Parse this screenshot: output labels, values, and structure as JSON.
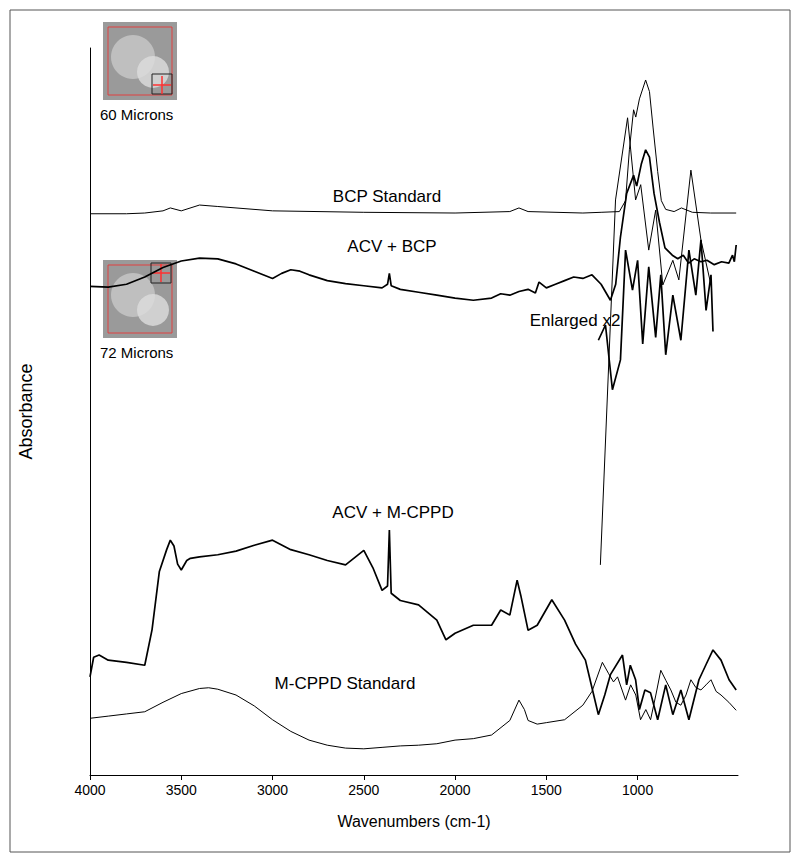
{
  "chart_data": {
    "type": "line",
    "x_label": "Wavenumbers (cm-1)",
    "y_label": "Absorbance",
    "xlim": [
      4000,
      450
    ],
    "xticks": [
      4000,
      3500,
      3000,
      2500,
      2000,
      1500,
      1000
    ],
    "ylim": [
      0,
      100
    ],
    "tick_labels": "x",
    "grid": false,
    "log": false,
    "annotations": [
      {
        "text": "Enlarged x2"
      }
    ],
    "insets": [
      {
        "caption": "60 Microns"
      },
      {
        "caption": "72 Microns"
      }
    ],
    "series": [
      {
        "name": "BCP Standard",
        "color": "#000000",
        "line_style": "thin",
        "x": [
          4000,
          3800,
          3700,
          3600,
          3560,
          3500,
          3400,
          3300,
          3000,
          2500,
          2000,
          1700,
          1650,
          1600,
          1300,
          1200,
          1100,
          1066,
          1045,
          1022,
          1010,
          990,
          956,
          935,
          915,
          890,
          870,
          846,
          800,
          760,
          700,
          600,
          460
        ],
        "values": [
          77.2,
          77.2,
          77.3,
          77.6,
          78.0,
          77.6,
          78.4,
          78.2,
          77.6,
          77.4,
          77.3,
          77.5,
          78.0,
          77.5,
          77.3,
          77.4,
          77.5,
          79,
          86,
          91.5,
          90.5,
          93,
          95.6,
          94,
          89,
          83,
          79,
          77.8,
          77.5,
          78,
          77.4,
          77.3,
          77.3
        ]
      },
      {
        "name": "ACV + BCP",
        "color": "#000000",
        "line_style": "thick",
        "x": [
          4000,
          3900,
          3800,
          3700,
          3600,
          3500,
          3400,
          3300,
          3200,
          3100,
          3000,
          2950,
          2900,
          2850,
          2800,
          2700,
          2600,
          2500,
          2400,
          2370,
          2360,
          2350,
          2300,
          2200,
          2100,
          2000,
          1900,
          1800,
          1750,
          1700,
          1650,
          1600,
          1560,
          1540,
          1500,
          1450,
          1400,
          1350,
          1300,
          1250,
          1200,
          1149,
          1120,
          1094,
          1060,
          1022,
          1005,
          980,
          956,
          935,
          910,
          880,
          850,
          810,
          780,
          750,
          720,
          690,
          653,
          620,
          580,
          540,
          500,
          480,
          470,
          460
        ],
        "values": [
          67.2,
          67.1,
          67.5,
          68.5,
          69.8,
          70.7,
          71.1,
          71.0,
          70.3,
          69.3,
          68.3,
          69.0,
          69.5,
          69.3,
          68.8,
          68.0,
          67.6,
          67.3,
          67.0,
          67.5,
          69.0,
          67.3,
          66.8,
          66.4,
          66.0,
          65.6,
          65.3,
          65.6,
          66.2,
          66.0,
          66.5,
          66.8,
          66.3,
          67.8,
          67.0,
          67.5,
          68.0,
          68.5,
          68.3,
          68.8,
          67.5,
          65.3,
          67.5,
          74,
          80,
          82.5,
          81,
          84,
          86,
          85,
          80,
          76,
          72.5,
          71.5,
          71,
          71.5,
          70.4,
          71,
          70.6,
          70.8,
          70.2,
          70.6,
          70.4,
          71.5,
          70.6,
          72.9
        ]
      },
      {
        "color": "#000000",
        "line_style": "thin",
        "x": [
          1204,
          1121,
          1055,
          1011,
          983,
          939,
          901,
          862,
          807,
          774,
          708,
          653,
          598
        ],
        "values": [
          28.9,
          79.1,
          90.4,
          79.1,
          81.2,
          72.2,
          77.7,
          67.4,
          70.8,
          68.1,
          83.2,
          73.6,
          67.4
        ]
      },
      {
        "color": "#000000",
        "line_style": "thick",
        "x": [
          1215,
          1176,
          1138,
          1094,
          1066,
          1028,
          1000,
          972,
          939,
          901,
          873,
          846,
          807,
          763,
          719,
          681,
          653,
          625,
          598,
          587
        ],
        "values": [
          59.8,
          61.9,
          53.0,
          57.1,
          72.2,
          66.7,
          70.8,
          59.3,
          69.9,
          60.2,
          68.8,
          57.8,
          66.0,
          59.8,
          72.2,
          66.0,
          73.6,
          63.9,
          68.8,
          61.0
        ]
      },
      {
        "name": "ACV + M-CPPD",
        "color": "#000000",
        "line_style": "thick",
        "x": [
          4000,
          3980,
          3950,
          3900,
          3800,
          3700,
          3660,
          3620,
          3580,
          3560,
          3540,
          3520,
          3500,
          3470,
          3450,
          3400,
          3300,
          3200,
          3100,
          3000,
          2900,
          2800,
          2700,
          2600,
          2500,
          2450,
          2400,
          2370,
          2360,
          2350,
          2300,
          2200,
          2100,
          2050,
          2000,
          1900,
          1800,
          1750,
          1700,
          1660,
          1640,
          1600,
          1550,
          1470,
          1400,
          1340,
          1286,
          1250,
          1215,
          1180,
          1149,
          1083,
          1060,
          1040,
          1011,
          990,
          960,
          929,
          890,
          846,
          807,
          763,
          719,
          664,
          625,
          587,
          543,
          499,
          460
        ],
        "values": [
          13.5,
          16.2,
          16.5,
          15.8,
          15.5,
          15.1,
          20,
          28,
          31,
          32.3,
          31.5,
          29,
          28.2,
          29.5,
          29.8,
          30,
          30.3,
          30.8,
          31.6,
          32.3,
          31,
          30.3,
          29.5,
          28.9,
          30.9,
          28.5,
          25.4,
          26,
          33.7,
          25,
          24,
          23.4,
          21.3,
          18.6,
          19.5,
          20.6,
          20.6,
          22.7,
          22,
          26.8,
          24.7,
          19.9,
          20.6,
          24.1,
          21.3,
          18,
          15.8,
          12,
          8.3,
          11,
          13.8,
          16.5,
          12.4,
          15.1,
          13.1,
          9,
          11.7,
          11.3,
          7.6,
          12.4,
          8.3,
          11.7,
          7.6,
          13.1,
          15.2,
          17.2,
          15.8,
          13.1,
          11.7
        ]
      },
      {
        "name": "M-CPPD Standard",
        "color": "#000000",
        "line_style": "thin",
        "x": [
          4000,
          3900,
          3800,
          3700,
          3600,
          3500,
          3400,
          3350,
          3300,
          3200,
          3100,
          3000,
          2900,
          2800,
          2700,
          2600,
          2500,
          2400,
          2300,
          2200,
          2100,
          2000,
          1900,
          1800,
          1700,
          1650,
          1620,
          1600,
          1550,
          1500,
          1400,
          1300,
          1250,
          1193,
          1160,
          1132,
          1110,
          1066,
          1038,
          1010,
          984,
          955,
          929,
          900,
          873,
          845,
          818,
          790,
          763,
          735,
          708,
          680,
          653,
          625,
          598,
          570,
          543,
          500,
          460
        ],
        "values": [
          7.8,
          8.1,
          8.4,
          8.7,
          10,
          11.2,
          11.9,
          12.0,
          11.8,
          11,
          9.5,
          7.6,
          6,
          4.8,
          4.1,
          3.7,
          3.6,
          3.8,
          4,
          4.1,
          4.3,
          4.8,
          5,
          5.5,
          7.5,
          10.3,
          9,
          7.5,
          7,
          7.2,
          7.6,
          9.6,
          11.5,
          15.5,
          14,
          12.8,
          13.5,
          10.3,
          12.4,
          11,
          7.6,
          9,
          7.6,
          11,
          14.4,
          13,
          11.7,
          10,
          9.6,
          11,
          13.1,
          12,
          11.7,
          12.4,
          13.1,
          11.5,
          11,
          10,
          8.9
        ]
      }
    ]
  }
}
